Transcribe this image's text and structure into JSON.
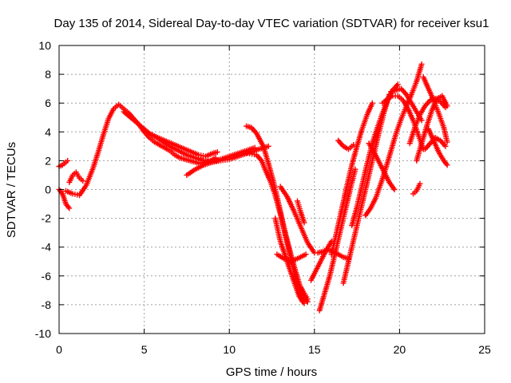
{
  "chart_data": {
    "type": "scatter",
    "title": "Day 135 of 2014, Sidereal Day-to-day VTEC variation (SDTVAR) for receiver ksu1",
    "xlabel": "GPS time / hours",
    "ylabel": "SDTVAR / TECUs",
    "xlim": [
      0,
      25
    ],
    "ylim": [
      -10,
      10
    ],
    "xticks": [
      0,
      5,
      10,
      15,
      20,
      25
    ],
    "yticks": [
      -10,
      -8,
      -6,
      -4,
      -2,
      0,
      2,
      4,
      6,
      8,
      10
    ],
    "grid": true,
    "marker": "plus",
    "color": "#ff0000",
    "series": [
      {
        "x": [
          0.0,
          0.2,
          0.4,
          0.5
        ],
        "y": [
          1.6,
          1.7,
          1.9,
          2.0
        ]
      },
      {
        "x": [
          0.0,
          0.2,
          0.4,
          0.6
        ],
        "y": [
          0.0,
          -0.3,
          -1.0,
          -1.3
        ]
      },
      {
        "x": [
          0.6,
          0.8,
          1.0,
          1.2,
          1.4
        ],
        "y": [
          0.5,
          1.0,
          1.2,
          0.8,
          0.6
        ]
      },
      {
        "x": [
          0.4,
          0.8,
          1.2,
          1.6,
          2.0,
          2.3,
          2.6,
          2.9,
          3.2,
          3.5,
          3.8,
          4.1,
          4.4,
          4.7,
          5.0,
          5.3,
          5.6,
          5.9,
          6.2,
          6.5,
          6.8,
          7.1,
          7.4,
          7.7,
          8.0,
          8.3,
          8.6,
          8.9,
          9.2
        ],
        "y": [
          -0.1,
          -0.3,
          -0.4,
          0.3,
          1.5,
          2.6,
          3.8,
          4.9,
          5.6,
          5.9,
          5.6,
          5.3,
          4.9,
          4.5,
          4.0,
          3.6,
          3.3,
          3.1,
          2.9,
          2.7,
          2.4,
          2.2,
          2.1,
          2.0,
          1.9,
          1.8,
          1.9,
          2.0,
          2.2
        ]
      },
      {
        "x": [
          3.8,
          4.2,
          4.6,
          5.0,
          5.4,
          5.8,
          6.2,
          6.6,
          7.0,
          7.4,
          7.8,
          8.2,
          8.6,
          9.0,
          9.3
        ],
        "y": [
          5.4,
          5.0,
          4.6,
          4.2,
          3.8,
          3.6,
          3.4,
          3.2,
          3.0,
          2.8,
          2.6,
          2.4,
          2.3,
          2.5,
          2.6
        ]
      },
      {
        "x": [
          5.5,
          6.0,
          6.5,
          7.0,
          7.5,
          8.0,
          8.5,
          9.0,
          9.5,
          10.0,
          10.5,
          11.0,
          11.5,
          12.0,
          12.3
        ],
        "y": [
          3.8,
          3.4,
          3.0,
          2.7,
          2.4,
          2.2,
          2.0,
          1.9,
          2.0,
          2.1,
          2.3,
          2.5,
          2.7,
          2.9,
          3.0
        ]
      },
      {
        "x": [
          7.5,
          8.0,
          8.5,
          9.0,
          9.5,
          10.0,
          10.5,
          11.0,
          11.5
        ],
        "y": [
          1.0,
          1.4,
          1.7,
          1.9,
          2.1,
          2.3,
          2.5,
          2.7,
          2.9
        ]
      },
      {
        "x": [
          11.0,
          11.3,
          11.6,
          12.0,
          12.3,
          12.6,
          12.9,
          13.2,
          13.5,
          13.8,
          14.1,
          14.4,
          14.6
        ],
        "y": [
          4.4,
          4.3,
          3.9,
          3.0,
          1.8,
          0.5,
          -1.0,
          -2.6,
          -4.0,
          -5.3,
          -6.5,
          -7.5,
          -7.8
        ]
      },
      {
        "x": [
          10.8,
          11.2,
          11.6,
          11.9,
          12.1,
          12.4,
          12.7,
          13.0,
          13.3,
          13.6,
          13.9,
          14.1,
          14.3
        ],
        "y": [
          2.6,
          2.5,
          2.4,
          2.0,
          1.4,
          0.6,
          -0.4,
          -1.7,
          -3.2,
          -4.7,
          -6.1,
          -7.2,
          -7.8
        ]
      },
      {
        "x": [
          12.7,
          13.0,
          13.4,
          13.8,
          14.1,
          14.4
        ],
        "y": [
          -2.0,
          -3.6,
          -5.0,
          -6.4,
          -7.4,
          -7.9
        ]
      },
      {
        "x": [
          12.8,
          13.2,
          13.6,
          14.0,
          14.5
        ],
        "y": [
          -4.5,
          -4.8,
          -5.0,
          -4.8,
          -4.5
        ]
      },
      {
        "x": [
          13.0,
          13.4,
          13.8,
          14.2,
          14.6,
          15.0
        ],
        "y": [
          0.2,
          -0.5,
          -1.5,
          -2.6,
          -3.7,
          -4.4
        ]
      },
      {
        "x": [
          14.0,
          14.2,
          14.4
        ],
        "y": [
          -0.8,
          -1.6,
          -2.3
        ]
      },
      {
        "x": [
          14.2,
          14.4,
          14.6
        ],
        "y": [
          -6.8,
          -7.2,
          -7.6
        ]
      },
      {
        "x": [
          14.8,
          15.1,
          15.4,
          15.7,
          16.0
        ],
        "y": [
          -6.3,
          -5.6,
          -4.9,
          -4.2,
          -3.6
        ]
      },
      {
        "x": [
          15.2,
          15.5,
          15.8,
          16.1,
          16.4,
          16.7,
          17.0
        ],
        "y": [
          -4.4,
          -4.3,
          -4.2,
          -4.3,
          -4.5,
          -4.7,
          -4.8
        ]
      },
      {
        "x": [
          15.3,
          15.6,
          15.9,
          16.2,
          16.5,
          16.8,
          17.1,
          17.4
        ],
        "y": [
          -8.4,
          -7.2,
          -6.0,
          -4.5,
          -3.0,
          -1.5,
          0.0,
          1.4
        ]
      },
      {
        "x": [
          16.0,
          16.3,
          16.6,
          16.9,
          17.2,
          17.5,
          17.8,
          18.1,
          18.4
        ],
        "y": [
          -4.5,
          -3.0,
          -1.4,
          0.2,
          1.7,
          3.0,
          4.2,
          5.2,
          6.0
        ]
      },
      {
        "x": [
          16.7,
          17.0,
          17.3,
          17.6,
          17.9,
          18.2,
          18.5,
          18.8,
          19.1,
          19.4
        ],
        "y": [
          -6.5,
          -5.0,
          -3.5,
          -2.0,
          -0.5,
          1.0,
          2.5,
          4.0,
          5.4,
          6.6
        ]
      },
      {
        "x": [
          17.2,
          17.5,
          17.8,
          18.1,
          18.4,
          18.7,
          19.0,
          19.3,
          19.6,
          19.9
        ],
        "y": [
          -2.5,
          -1.2,
          0.3,
          1.8,
          3.2,
          4.3,
          5.3,
          6.2,
          6.9,
          7.3
        ]
      },
      {
        "x": [
          16.4,
          16.7,
          17.0,
          17.3
        ],
        "y": [
          3.4,
          3.0,
          2.8,
          3.1
        ]
      },
      {
        "x": [
          18.0,
          18.3,
          18.6,
          18.9,
          19.2,
          19.5,
          19.8,
          20.1,
          20.4,
          20.7,
          21.0,
          21.3
        ],
        "y": [
          -1.8,
          -1.3,
          -0.6,
          0.4,
          1.5,
          2.7,
          3.9,
          4.9,
          5.8,
          6.6,
          7.5,
          8.7
        ]
      },
      {
        "x": [
          18.2,
          18.5,
          18.8,
          19.1,
          19.4,
          19.7
        ],
        "y": [
          3.2,
          2.6,
          1.9,
          1.2,
          0.5,
          0.0
        ]
      },
      {
        "x": [
          19.0,
          19.3,
          19.6,
          19.9,
          20.2,
          20.5,
          20.8,
          21.1,
          21.4
        ],
        "y": [
          6.0,
          6.3,
          6.5,
          6.5,
          6.2,
          5.6,
          4.8,
          3.8,
          2.8
        ]
      },
      {
        "x": [
          19.5,
          19.8,
          20.1,
          20.4,
          20.7,
          21.0,
          21.3
        ],
        "y": [
          6.8,
          6.9,
          7.0,
          6.6,
          6.0,
          5.4,
          4.8
        ]
      },
      {
        "x": [
          20.6,
          20.9,
          21.2,
          21.5,
          21.8,
          22.1,
          22.4,
          22.7
        ],
        "y": [
          3.2,
          4.3,
          5.2,
          5.8,
          6.2,
          6.3,
          6.1,
          5.7
        ]
      },
      {
        "x": [
          21.0,
          21.3,
          21.6,
          21.9,
          22.2,
          22.5,
          22.8
        ],
        "y": [
          2.0,
          3.2,
          4.4,
          5.5,
          6.3,
          6.5,
          5.8
        ]
      },
      {
        "x": [
          21.4,
          21.7,
          22.0,
          22.3,
          22.6,
          22.8
        ],
        "y": [
          7.8,
          7.0,
          6.2,
          5.3,
          4.3,
          3.3
        ]
      },
      {
        "x": [
          21.5,
          21.8,
          22.1,
          22.4,
          22.7
        ],
        "y": [
          2.8,
          3.2,
          3.6,
          3.4,
          3.0
        ]
      },
      {
        "x": [
          21.7,
          22.0,
          22.3,
          22.6,
          22.8
        ],
        "y": [
          4.2,
          3.4,
          2.6,
          2.0,
          1.7
        ]
      },
      {
        "x": [
          20.8,
          21.0,
          21.2
        ],
        "y": [
          -0.3,
          -0.1,
          0.4
        ]
      }
    ]
  }
}
